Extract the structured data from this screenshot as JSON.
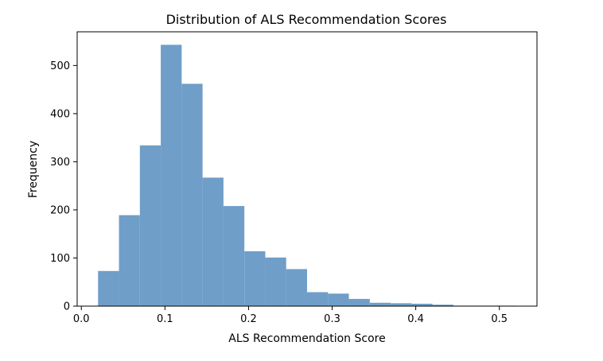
{
  "chart_data": {
    "type": "bar",
    "title": "Distribution of ALS Recommendation Scores",
    "xlabel": "ALS Recommendation Score",
    "ylabel": "Frequency",
    "xlim": [
      -0.005,
      0.545
    ],
    "ylim": [
      0,
      570
    ],
    "x_ticks": [
      0.0,
      0.1,
      0.2,
      0.3,
      0.4,
      0.5
    ],
    "x_tick_labels": [
      "0.0",
      "0.1",
      "0.2",
      "0.3",
      "0.4",
      "0.5"
    ],
    "y_ticks": [
      0,
      100,
      200,
      300,
      400,
      500
    ],
    "y_tick_labels": [
      "0",
      "100",
      "200",
      "300",
      "400",
      "500"
    ],
    "grid": false,
    "bar_color": "#6f9ec8",
    "bins": [
      {
        "x0": 0.02,
        "x1": 0.045,
        "count": 73
      },
      {
        "x0": 0.045,
        "x1": 0.07,
        "count": 189
      },
      {
        "x0": 0.07,
        "x1": 0.095,
        "count": 334
      },
      {
        "x0": 0.095,
        "x1": 0.12,
        "count": 543
      },
      {
        "x0": 0.12,
        "x1": 0.145,
        "count": 462
      },
      {
        "x0": 0.145,
        "x1": 0.17,
        "count": 267
      },
      {
        "x0": 0.17,
        "x1": 0.195,
        "count": 208
      },
      {
        "x0": 0.195,
        "x1": 0.22,
        "count": 114
      },
      {
        "x0": 0.22,
        "x1": 0.245,
        "count": 101
      },
      {
        "x0": 0.245,
        "x1": 0.27,
        "count": 77
      },
      {
        "x0": 0.27,
        "x1": 0.295,
        "count": 29
      },
      {
        "x0": 0.295,
        "x1": 0.32,
        "count": 26
      },
      {
        "x0": 0.32,
        "x1": 0.345,
        "count": 15
      },
      {
        "x0": 0.345,
        "x1": 0.37,
        "count": 7
      },
      {
        "x0": 0.37,
        "x1": 0.395,
        "count": 6
      },
      {
        "x0": 0.395,
        "x1": 0.42,
        "count": 5
      },
      {
        "x0": 0.42,
        "x1": 0.445,
        "count": 3
      },
      {
        "x0": 0.445,
        "x1": 0.47,
        "count": 1
      },
      {
        "x0": 0.47,
        "x1": 0.495,
        "count": 1
      },
      {
        "x0": 0.495,
        "x1": 0.52,
        "count": 1
      }
    ]
  }
}
